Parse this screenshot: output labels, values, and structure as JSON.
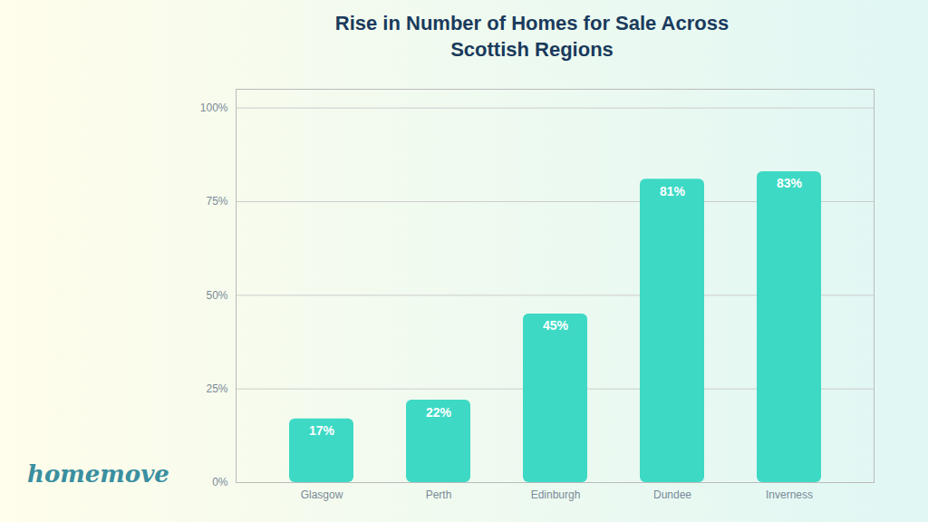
{
  "chart_data": {
    "type": "bar",
    "title": "Rise in Number of Homes for Sale Across\nScottish Regions",
    "categories": [
      "Glasgow",
      "Perth",
      "Edinburgh",
      "Dundee",
      "Inverness"
    ],
    "values": [
      17,
      22,
      45,
      81,
      83
    ],
    "value_labels": [
      "17%",
      "22%",
      "45%",
      "81%",
      "83%"
    ],
    "data_labels": true,
    "color": "#3DD9C5",
    "ylim": [
      0,
      105
    ],
    "yticks": [
      {
        "value": 0,
        "label": "0%"
      },
      {
        "value": 25,
        "label": "25%"
      },
      {
        "value": 50,
        "label": "50%"
      },
      {
        "value": 75,
        "label": "75%"
      },
      {
        "value": 100,
        "label": "100%"
      }
    ],
    "grid": true,
    "annotations": [
      "homemove"
    ]
  }
}
